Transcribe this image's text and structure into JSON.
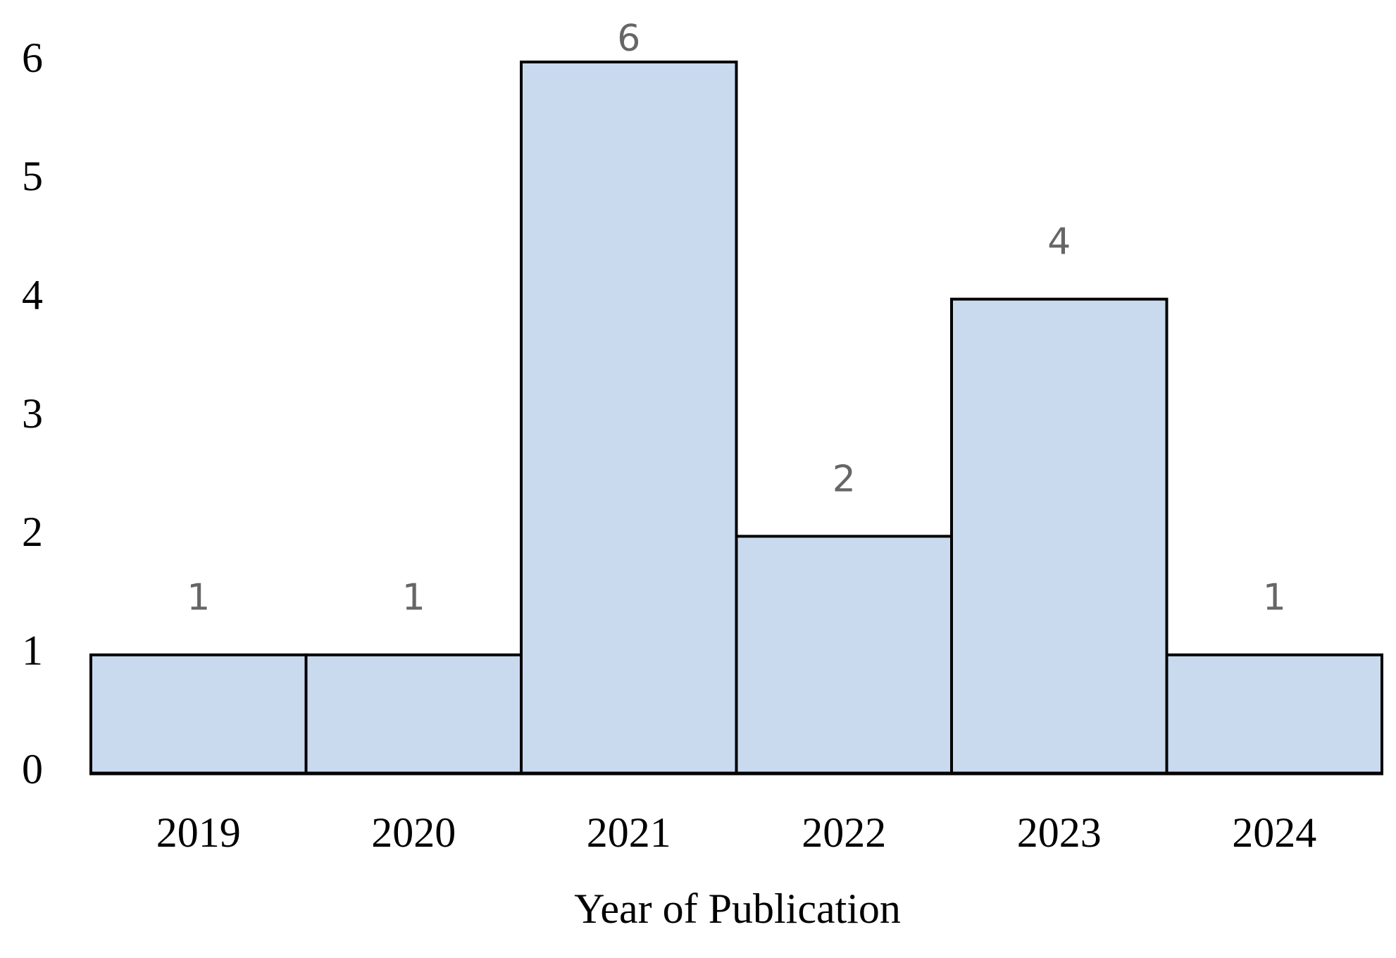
{
  "chart_data": {
    "type": "bar",
    "x_label": "Year of Publication",
    "categories": [
      "2019",
      "2020",
      "2021",
      "2022",
      "2023",
      "2024"
    ],
    "values": [
      1,
      1,
      6,
      2,
      4,
      1
    ],
    "color": "#c9daef",
    "ylim": [
      0,
      6
    ],
    "yticks": [
      0,
      1,
      2,
      3,
      4,
      5,
      6
    ]
  }
}
